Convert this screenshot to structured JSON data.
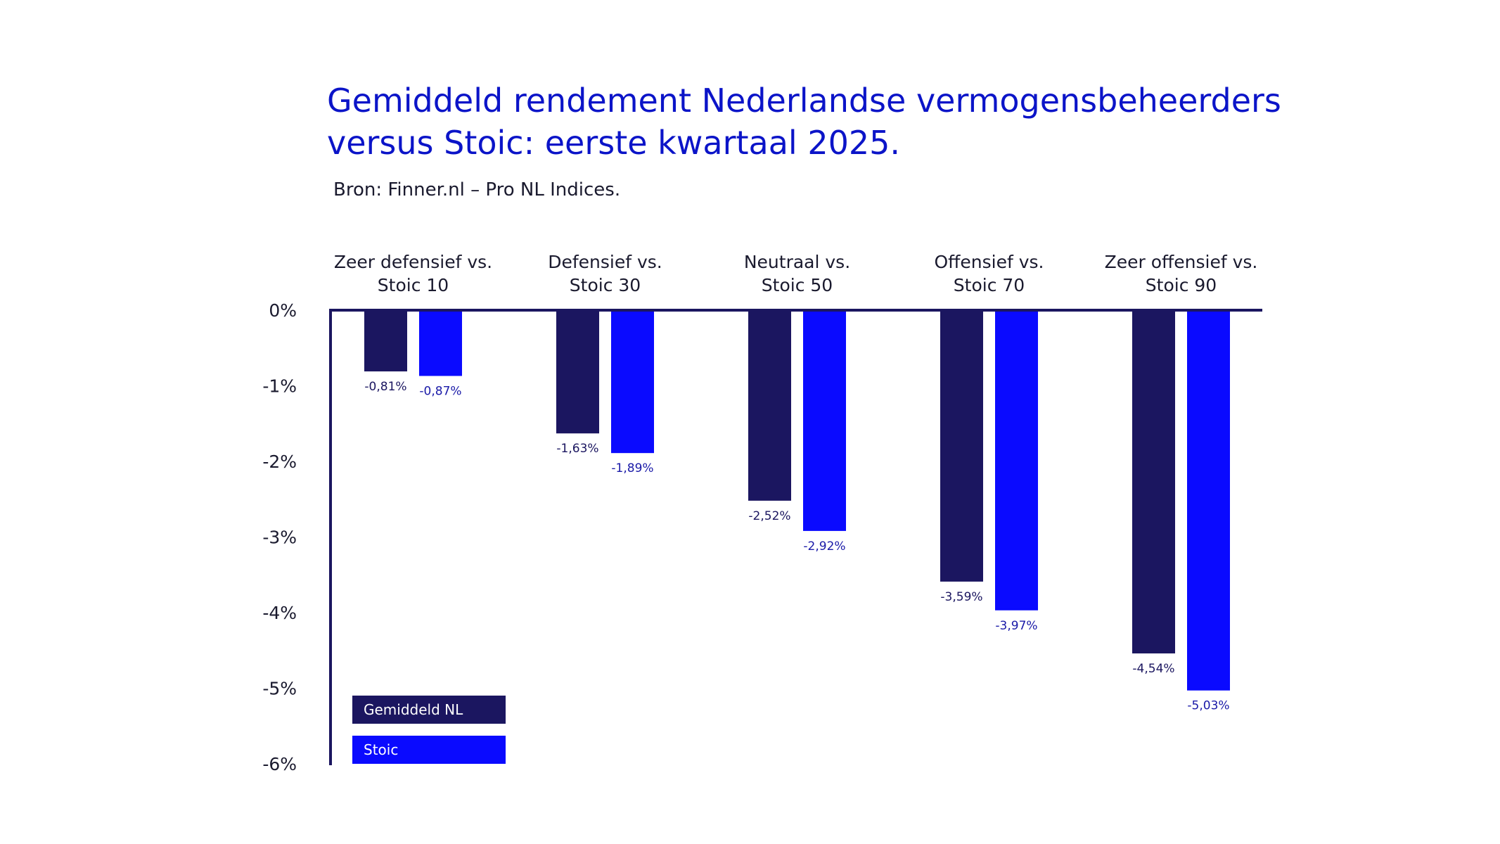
{
  "chart_data": {
    "type": "bar",
    "title": "Gemiddeld rendement Nederlandse vermogensbeheerders versus Stoic: eerste kwartaal 2025.",
    "subtitle": "Bron: Finner.nl – Pro NL Indices.",
    "categories": [
      [
        "Zeer defensief vs.",
        "Stoic 10"
      ],
      [
        "Defensief vs.",
        "Stoic 30"
      ],
      [
        "Neutraal vs.",
        "Stoic 50"
      ],
      [
        "Offensief vs.",
        "Stoic 70"
      ],
      [
        "Zeer offensief vs.",
        "Stoic 90"
      ]
    ],
    "series": [
      {
        "name": "Gemiddeld NL",
        "color": "#1b1660",
        "values": [
          -0.81,
          -1.63,
          -2.52,
          -3.59,
          -4.54
        ],
        "labels": [
          "-0,81%",
          "-1,63%",
          "-2,52%",
          "-3,59%",
          "-4,54%"
        ]
      },
      {
        "name": "Stoic",
        "color": "#0a0aff",
        "values": [
          -0.87,
          -1.89,
          -2.92,
          -3.97,
          -5.03
        ],
        "labels": [
          "-0,87%",
          "-1,89%",
          "-2,92%",
          "-3,97%",
          "-5,03%"
        ]
      }
    ],
    "yticks": [
      0,
      -1,
      -2,
      -3,
      -4,
      -5,
      -6
    ],
    "ytick_labels": [
      "0%",
      "-1%",
      "-2%",
      "-3%",
      "-4%",
      "-5%",
      "-6%"
    ],
    "ylim": [
      -6,
      0
    ],
    "grid": false,
    "legend_position": "bottom-left",
    "axis_color": "#1b1660",
    "label_color_nl": "#1b1660",
    "label_color_stoic": "#1a1aa8"
  }
}
